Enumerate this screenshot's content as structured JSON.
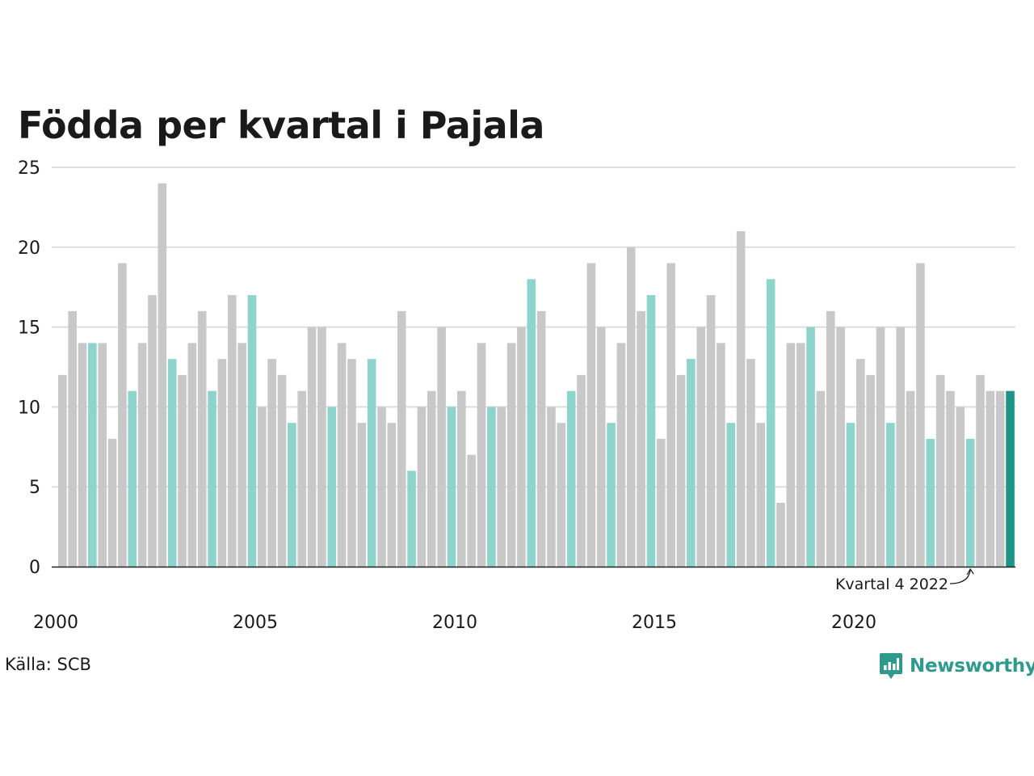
{
  "chart_data": {
    "type": "bar",
    "title": "Födda per kvartal i Pajala",
    "xlabel": "",
    "ylabel": "",
    "ylim": [
      0,
      25
    ],
    "yticks": [
      "0",
      "5",
      "10",
      "15",
      "20",
      "25"
    ],
    "xticks": [
      {
        "label": "2000",
        "year": 2000
      },
      {
        "label": "2005",
        "year": 2005
      },
      {
        "label": "2010",
        "year": 2010
      },
      {
        "label": "2015",
        "year": 2015
      },
      {
        "label": "2020",
        "year": 2020
      }
    ],
    "grid": true,
    "start_year": 2000,
    "highlight_quarter": 4,
    "colors": {
      "default": "#c8c8c8",
      "highlight": "#8dd5cc",
      "latest": "#1d9485"
    },
    "annotation": {
      "text": "Kvartal 4 2022",
      "target_index": 91
    },
    "values": [
      12,
      16,
      14,
      14,
      14,
      8,
      19,
      11,
      14,
      17,
      24,
      13,
      12,
      14,
      16,
      11,
      13,
      17,
      14,
      17,
      10,
      13,
      12,
      9,
      11,
      15,
      15,
      10,
      14,
      13,
      9,
      13,
      10,
      9,
      16,
      6,
      10,
      11,
      15,
      10,
      11,
      7,
      14,
      10,
      10,
      14,
      15,
      18,
      16,
      10,
      9,
      11,
      12,
      19,
      15,
      9,
      14,
      20,
      16,
      17,
      8,
      19,
      12,
      13,
      15,
      17,
      14,
      9,
      21,
      13,
      9,
      18,
      4,
      14,
      14,
      15,
      11,
      16,
      15,
      9,
      13,
      12,
      15,
      9,
      15,
      11,
      19,
      8,
      12,
      11,
      10,
      8,
      12,
      11,
      11,
      11
    ]
  },
  "footer": {
    "source": "Källa: SCB",
    "brand": "Newsworthy"
  }
}
